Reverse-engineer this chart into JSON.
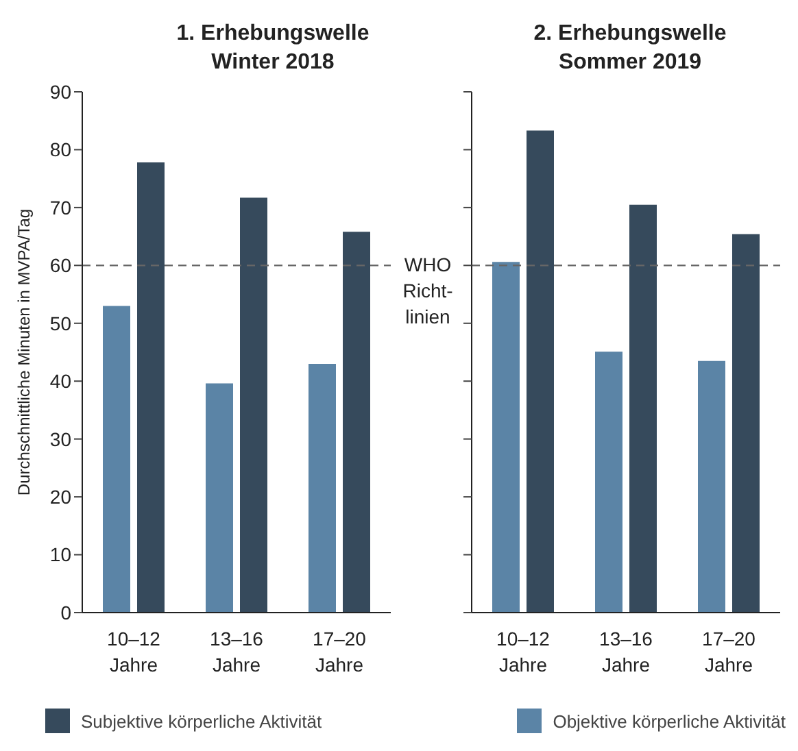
{
  "chart_data": [
    {
      "type": "bar",
      "title": "1. Erhebungswelle Winter 2018",
      "ylabel": "Durchschnittliche Minuten in MVPA/Tag",
      "categories": [
        "10–12 Jahre",
        "13–16 Jahre",
        "17–20 Jahre"
      ],
      "series": [
        {
          "name": "Objektive körperliche Aktivität",
          "color": "#5b84a6",
          "values": [
            53,
            39.6,
            43
          ]
        },
        {
          "name": "Subjektive körperliche Aktivität",
          "color": "#364a5c",
          "values": [
            77.8,
            71.7,
            65.8
          ]
        }
      ],
      "ylim": [
        0,
        90
      ],
      "yticks": [
        0,
        10,
        20,
        30,
        40,
        50,
        60,
        70,
        80,
        90
      ],
      "ref_lines": [
        {
          "axis": "y",
          "value": 60,
          "label": "WHO Richt-linien",
          "color": "#666666",
          "line_style": "dashed"
        }
      ],
      "legend": "bottom"
    },
    {
      "type": "bar",
      "title": "2. Erhebungswelle Sommer 2019",
      "categories": [
        "10–12 Jahre",
        "13–16 Jahre",
        "17–20 Jahre"
      ],
      "series": [
        {
          "color": "#5b84a6",
          "values": [
            60.6,
            45.1,
            43.5
          ]
        },
        {
          "color": "#364a5c",
          "values": [
            83.3,
            70.5,
            65.4
          ]
        }
      ],
      "ylim": [
        0,
        90
      ],
      "yticks": [
        0,
        10,
        20,
        30,
        40,
        50,
        60,
        70,
        80,
        90
      ],
      "tick_labels": "x",
      "ref_lines": [
        {
          "axis": "y",
          "value": 60,
          "color": "#666666",
          "line_style": "dashed"
        }
      ]
    }
  ]
}
